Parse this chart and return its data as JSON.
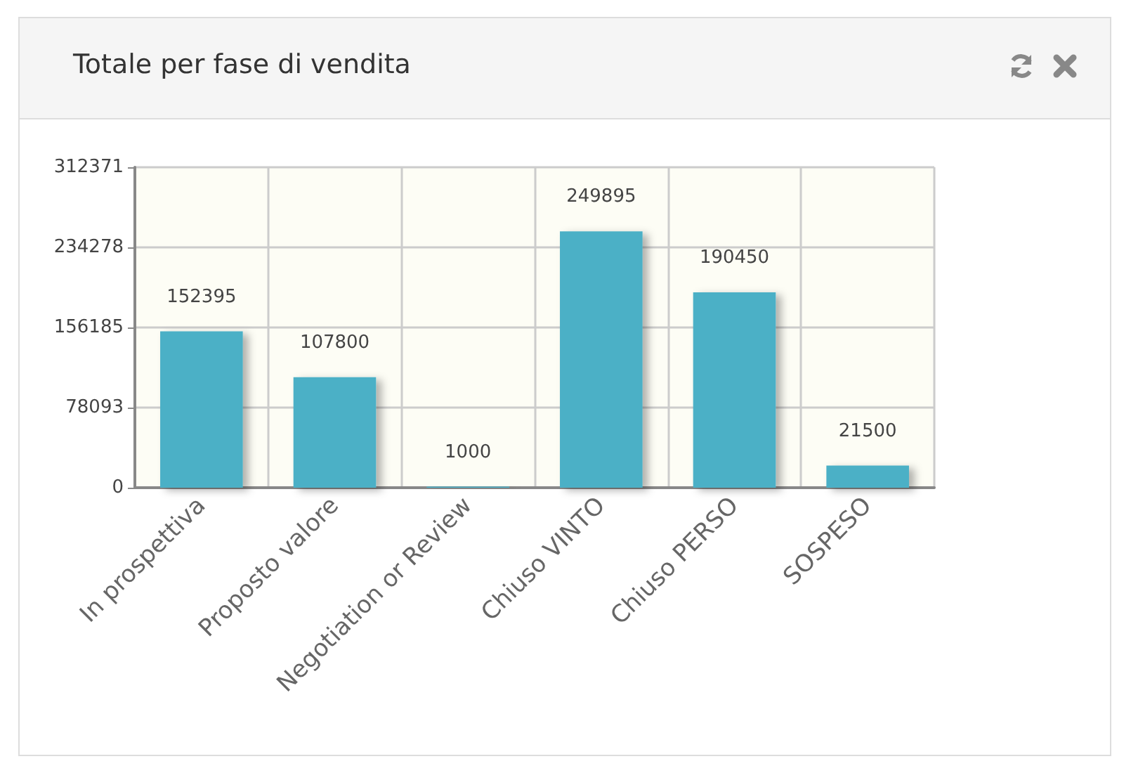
{
  "chart_data": {
    "type": "bar",
    "title": "Totale per fase di vendita",
    "categories": [
      "In prospettiva",
      "Proposto valore",
      "Negotiation or Review",
      "Chiuso VINTO",
      "Chiuso PERSO",
      "SOSPESO"
    ],
    "values": [
      152395,
      107800,
      1000,
      249895,
      190450,
      21500
    ],
    "color": "#4bb0c6",
    "ylim": [
      0,
      312371
    ],
    "yticks": [
      0,
      78093,
      156185,
      234278,
      312371
    ],
    "grid": true,
    "data_labels": true
  }
}
